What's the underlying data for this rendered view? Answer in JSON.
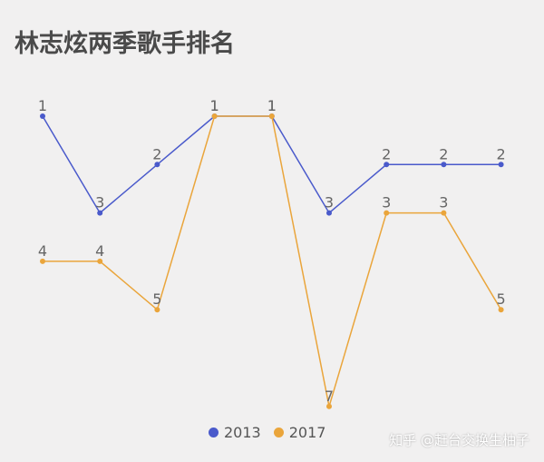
{
  "page": {
    "watermark": "知乎 @赶台交换生柚子"
  },
  "chart_data": {
    "type": "line",
    "title": "林志炫两季歌手排名",
    "xlabel": "",
    "ylabel": "",
    "x": [
      1,
      2,
      3,
      4,
      5,
      6,
      7,
      8,
      9
    ],
    "ylim": [
      1,
      7
    ],
    "y_inverted": true,
    "grid": false,
    "legend": "bottom",
    "series": [
      {
        "name": "2013",
        "color": "#4a5acb",
        "values": [
          1,
          3,
          2,
          1,
          1,
          3,
          2,
          2,
          2
        ]
      },
      {
        "name": "2017",
        "color": "#eaa53b",
        "values": [
          4,
          4,
          5,
          1,
          1,
          7,
          3,
          3,
          5
        ]
      }
    ]
  }
}
